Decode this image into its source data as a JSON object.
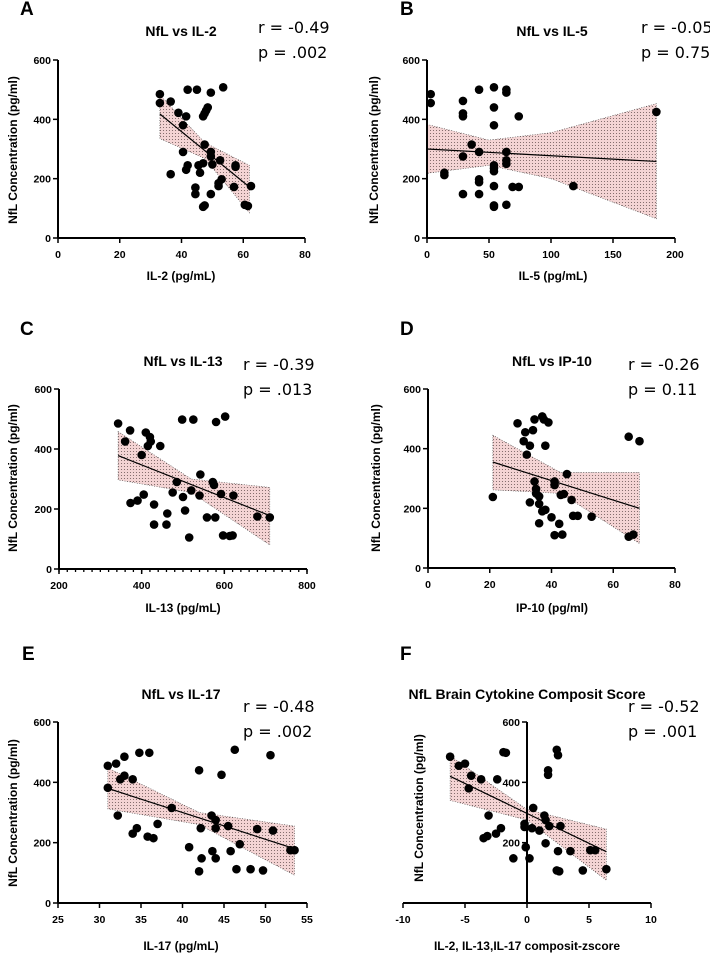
{
  "chart_data": [
    {
      "panel": "A",
      "type": "scatter",
      "title": "NfL vs IL-2",
      "stats": {
        "r": "r = -0.49",
        "p": "p = .002"
      },
      "xlabel": "IL-2 (pg/mL)",
      "ylabel": "NfL Concentration (pg/ml)",
      "xlim": [
        0,
        80
      ],
      "ylim": [
        0,
        600
      ],
      "xticks": [
        0,
        20,
        40,
        60,
        80
      ],
      "yticks": [
        0,
        200,
        400,
        600
      ],
      "points": [
        [
          33,
          485
        ],
        [
          33,
          455
        ],
        [
          36.5,
          460
        ],
        [
          39,
          422
        ],
        [
          40.5,
          380
        ],
        [
          41.5,
          410
        ],
        [
          42,
          500
        ],
        [
          45,
          500
        ],
        [
          49.5,
          490
        ],
        [
          53.5,
          508
        ],
        [
          47,
          410
        ],
        [
          47.5,
          420
        ],
        [
          48,
          430
        ],
        [
          48.5,
          440
        ],
        [
          47.5,
          315
        ],
        [
          40.5,
          290
        ],
        [
          41.5,
          230
        ],
        [
          42,
          245
        ],
        [
          36.5,
          215
        ],
        [
          45.5,
          245
        ],
        [
          46,
          220
        ],
        [
          47,
          252
        ],
        [
          49.5,
          290
        ],
        [
          49.5,
          275
        ],
        [
          50,
          248
        ],
        [
          52.5,
          262
        ],
        [
          53,
          198
        ],
        [
          52,
          185
        ],
        [
          52,
          175
        ],
        [
          57.5,
          240
        ],
        [
          57.5,
          245
        ],
        [
          57,
          172
        ],
        [
          62.5,
          175
        ],
        [
          44.5,
          170
        ],
        [
          44.5,
          148
        ],
        [
          49.5,
          148
        ],
        [
          47,
          105
        ],
        [
          47.5,
          110
        ],
        [
          60.5,
          112
        ],
        [
          61.5,
          108
        ]
      ],
      "fit_line": [
        [
          33,
          418
        ],
        [
          62,
          172
        ]
      ],
      "ci_band": {
        "x": [
          33,
          47.5,
          62
        ],
        "lower": [
          335,
          268,
          85
        ],
        "upper": [
          482,
          322,
          245
        ]
      }
    },
    {
      "panel": "B",
      "type": "scatter",
      "title": "NfL vs IL-5",
      "stats": {
        "r": "r = -0.05",
        "p": "p = 0.75"
      },
      "xlabel": "IL-5 (pg/mL)",
      "ylabel": "NfL Concentration (pg/ml)",
      "xlim": [
        0,
        200
      ],
      "ylim": [
        0,
        600
      ],
      "xticks": [
        0,
        50,
        100,
        150,
        200
      ],
      "yticks": [
        0,
        200,
        400,
        600
      ],
      "points": [
        [
          3,
          485
        ],
        [
          3,
          455
        ],
        [
          14,
          220
        ],
        [
          14,
          212
        ],
        [
          29,
          462
        ],
        [
          29,
          420
        ],
        [
          29,
          410
        ],
        [
          29,
          275
        ],
        [
          29,
          148
        ],
        [
          36,
          315
        ],
        [
          42,
          500
        ],
        [
          42,
          290
        ],
        [
          42,
          198
        ],
        [
          42,
          188
        ],
        [
          42,
          148
        ],
        [
          54,
          508
        ],
        [
          54,
          440
        ],
        [
          54,
          380
        ],
        [
          54,
          245
        ],
        [
          54,
          235
        ],
        [
          54,
          225
        ],
        [
          54,
          175
        ],
        [
          54,
          110
        ],
        [
          54,
          105
        ],
        [
          64,
          500
        ],
        [
          64,
          490
        ],
        [
          64,
          290
        ],
        [
          64,
          262
        ],
        [
          64,
          250
        ],
        [
          64,
          112
        ],
        [
          69,
          172
        ],
        [
          74,
          172
        ],
        [
          74,
          410
        ],
        [
          118,
          175
        ],
        [
          185,
          425
        ]
      ],
      "fit_line": [
        [
          0,
          300
        ],
        [
          185,
          258
        ]
      ],
      "ci_band": {
        "x": [
          0,
          50,
          100,
          185
        ],
        "lower": [
          218,
          245,
          200,
          65
        ],
        "upper": [
          383,
          330,
          355,
          453
        ]
      }
    },
    {
      "panel": "C",
      "type": "scatter",
      "title": "NfL vs IL-13",
      "stats": {
        "r": "r = -0.39",
        "p": "p = .013"
      },
      "xlabel": "IL-13 (pg/mL)",
      "ylabel": "NfL Concentration (pg/ml)",
      "xlim": [
        200,
        800
      ],
      "ylim": [
        0,
        600
      ],
      "xticks": [
        200,
        400,
        600,
        800
      ],
      "minor_tick_step": 20,
      "yticks": [
        0,
        200,
        400,
        600
      ],
      "points": [
        [
          343,
          485
        ],
        [
          360,
          425
        ],
        [
          372,
          462
        ],
        [
          373,
          220
        ],
        [
          390,
          228
        ],
        [
          400,
          380
        ],
        [
          405,
          248
        ],
        [
          410,
          455
        ],
        [
          415,
          410
        ],
        [
          420,
          440
        ],
        [
          422,
          425
        ],
        [
          430,
          215
        ],
        [
          430,
          148
        ],
        [
          445,
          410
        ],
        [
          460,
          148
        ],
        [
          462,
          185
        ],
        [
          475,
          255
        ],
        [
          485,
          290
        ],
        [
          498,
          498
        ],
        [
          500,
          240
        ],
        [
          505,
          195
        ],
        [
          515,
          105
        ],
        [
          520,
          262
        ],
        [
          525,
          498
        ],
        [
          540,
          245
        ],
        [
          542,
          315
        ],
        [
          558,
          172
        ],
        [
          572,
          290
        ],
        [
          575,
          280
        ],
        [
          578,
          172
        ],
        [
          580,
          490
        ],
        [
          592,
          250
        ],
        [
          597,
          112
        ],
        [
          602,
          508
        ],
        [
          613,
          110
        ],
        [
          620,
          112
        ],
        [
          622,
          245
        ],
        [
          680,
          175
        ],
        [
          710,
          172
        ]
      ],
      "fit_line": [
        [
          343,
          378
        ],
        [
          710,
          178
        ]
      ],
      "ci_band": {
        "x": [
          343,
          520,
          710
        ],
        "lower": [
          297,
          255,
          80
        ],
        "upper": [
          458,
          300,
          272
        ]
      }
    },
    {
      "panel": "D",
      "type": "scatter",
      "title": "NfL vs IP-10",
      "stats": {
        "r": "r = -0.26",
        "p": "p = 0.11"
      },
      "xlabel": "IP-10 (pg/ml)",
      "ylabel": "NfL Concentration (pg/ml)",
      "xlim": [
        0,
        80
      ],
      "ylim": [
        0,
        600
      ],
      "xticks": [
        0,
        20,
        40,
        60,
        80
      ],
      "yticks": [
        0,
        200,
        400,
        600
      ],
      "points": [
        [
          21,
          238
        ],
        [
          29,
          485
        ],
        [
          31,
          425
        ],
        [
          31.5,
          455
        ],
        [
          32,
          380
        ],
        [
          33,
          410
        ],
        [
          33,
          220
        ],
        [
          34,
          462
        ],
        [
          34.5,
          290
        ],
        [
          34.5,
          498
        ],
        [
          35,
          265
        ],
        [
          35,
          250
        ],
        [
          36,
          240
        ],
        [
          36,
          215
        ],
        [
          36,
          150
        ],
        [
          37,
          508
        ],
        [
          37,
          190
        ],
        [
          37.5,
          498
        ],
        [
          38,
          410
        ],
        [
          38,
          195
        ],
        [
          39,
          488
        ],
        [
          40,
          170
        ],
        [
          41,
          290
        ],
        [
          41,
          278
        ],
        [
          41,
          110
        ],
        [
          42.5,
          148
        ],
        [
          43,
          245
        ],
        [
          43.5,
          112
        ],
        [
          44,
          248
        ],
        [
          45,
          315
        ],
        [
          46.5,
          228
        ],
        [
          47,
          175
        ],
        [
          48.5,
          175
        ],
        [
          53,
          172
        ],
        [
          65,
          440
        ],
        [
          65,
          105
        ],
        [
          66.5,
          112
        ],
        [
          68.5,
          425
        ]
      ],
      "fit_line": [
        [
          21,
          355
        ],
        [
          68.5,
          200
        ]
      ],
      "ci_band": {
        "x": [
          21,
          43,
          68.5
        ],
        "lower": [
          262,
          250,
          82
        ],
        "upper": [
          445,
          320,
          320
        ]
      }
    },
    {
      "panel": "E",
      "type": "scatter",
      "title": "NfL vs IL-17",
      "stats": {
        "r": "r = -0.48",
        "p": "p = .002"
      },
      "xlabel": "IL-17 (pg/mL)",
      "ylabel": "NfL Concentration (pg/ml)",
      "xlim": [
        25,
        55
      ],
      "ylim": [
        0,
        600
      ],
      "xticks": [
        25,
        30,
        35,
        40,
        45,
        50,
        55
      ],
      "yticks": [
        0,
        200,
        400,
        600
      ],
      "points": [
        [
          31,
          455
        ],
        [
          31,
          382
        ],
        [
          32,
          462
        ],
        [
          32.2,
          290
        ],
        [
          32.5,
          410
        ],
        [
          33,
          485
        ],
        [
          33,
          422
        ],
        [
          34,
          410
        ],
        [
          34,
          230
        ],
        [
          34.5,
          248
        ],
        [
          34.8,
          498
        ],
        [
          35.8,
          220
        ],
        [
          36,
          498
        ],
        [
          36.5,
          215
        ],
        [
          37,
          262
        ],
        [
          38.7,
          315
        ],
        [
          40.8,
          185
        ],
        [
          42,
          440
        ],
        [
          42,
          105
        ],
        [
          42.2,
          248
        ],
        [
          42.3,
          148
        ],
        [
          43.5,
          290
        ],
        [
          43.6,
          172
        ],
        [
          44,
          275
        ],
        [
          44,
          248
        ],
        [
          44,
          148
        ],
        [
          44.7,
          425
        ],
        [
          45.5,
          255
        ],
        [
          45.8,
          172
        ],
        [
          46.3,
          508
        ],
        [
          46.5,
          112
        ],
        [
          46.9,
          195
        ],
        [
          48.2,
          112
        ],
        [
          49,
          245
        ],
        [
          49.7,
          108
        ],
        [
          50.6,
          490
        ],
        [
          50.9,
          240
        ],
        [
          53,
          175
        ],
        [
          53.5,
          175
        ]
      ],
      "fit_line": [
        [
          31,
          380
        ],
        [
          53.5,
          180
        ]
      ],
      "ci_band": {
        "x": [
          31,
          42,
          53.5
        ],
        "lower": [
          312,
          260,
          92
        ],
        "upper": [
          448,
          300,
          255
        ]
      }
    },
    {
      "panel": "F",
      "type": "scatter",
      "title": "NfL Brain Cytokine Composit Score",
      "stats": {
        "r": "r = -0.52",
        "p": "p = .001"
      },
      "xlabel": "IL-2, IL-13,IL-17 composit-zscore",
      "ylabel": "NfL Concentration (pg/ml)",
      "xlim": [
        -10,
        10
      ],
      "ylim": [
        0,
        600
      ],
      "xticks": [
        -10,
        -5,
        0,
        5,
        10
      ],
      "yticks": [
        200,
        400,
        600
      ],
      "points": [
        [
          -6.2,
          485
        ],
        [
          -5.5,
          455
        ],
        [
          -5,
          462
        ],
        [
          -4.5,
          422
        ],
        [
          -4.7,
          380
        ],
        [
          -3.7,
          410
        ],
        [
          -3.1,
          290
        ],
        [
          -3.5,
          215
        ],
        [
          -3.2,
          222
        ],
        [
          -2.5,
          230
        ],
        [
          -2.1,
          248
        ],
        [
          -2.4,
          410
        ],
        [
          -1.9,
          500
        ],
        [
          -1.7,
          498
        ],
        [
          -1.1,
          148
        ],
        [
          -0.2,
          262
        ],
        [
          -0.2,
          252
        ],
        [
          -0.1,
          185
        ],
        [
          0.2,
          148
        ],
        [
          0.5,
          315
        ],
        [
          0.4,
          248
        ],
        [
          1,
          240
        ],
        [
          1.4,
          290
        ],
        [
          1.5,
          275
        ],
        [
          1.5,
          198
        ],
        [
          1.8,
          255
        ],
        [
          1.7,
          440
        ],
        [
          1.7,
          425
        ],
        [
          2.4,
          508
        ],
        [
          2.5,
          490
        ],
        [
          2.5,
          172
        ],
        [
          2.4,
          108
        ],
        [
          2.6,
          105
        ],
        [
          2.7,
          255
        ],
        [
          3.5,
          172
        ],
        [
          4.5,
          108
        ],
        [
          5.1,
          175
        ],
        [
          5.5,
          175
        ],
        [
          6.4,
          112
        ]
      ],
      "fit_line": [
        [
          -6.2,
          420
        ],
        [
          6.4,
          170
        ]
      ],
      "ci_band": {
        "x": [
          -6.2,
          0,
          6.4
        ],
        "lower": [
          340,
          275,
          75
        ],
        "upper": [
          488,
          310,
          245
        ]
      }
    }
  ],
  "colors": {
    "band_fill": "#f4d4d4",
    "dots": "#000000",
    "band_texture": "#5a4a4a"
  }
}
